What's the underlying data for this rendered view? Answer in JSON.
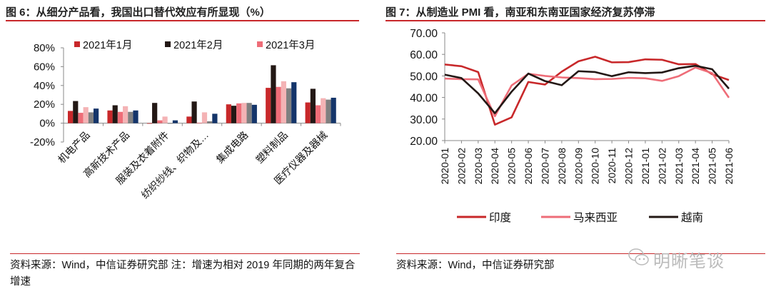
{
  "left": {
    "title": "图 6：从细分产品看，我国出口替代效应有所显现（%）",
    "source": "资料来源：Wind，中信证券研究部  注：增速为相对 2019 年同期的两年复合增速"
  },
  "right": {
    "title": "图 7：从制造业 PMI 看，南亚和东南亚国家经济复苏停滞",
    "source": "资料来源：Wind，中信证券研究部"
  },
  "watermark": "明晰笔谈",
  "chart_data": [
    {
      "type": "bar",
      "title": "从细分产品看，我国出口替代效应有所显现（%）",
      "categories": [
        "机电产品",
        "高新技术产品",
        "服装及衣着附件",
        "纺织纱线、织物及…",
        "集成电路",
        "塑料制品",
        "医疗仪器及器械"
      ],
      "ylim": [
        -20,
        80
      ],
      "yticks": [
        -20,
        0,
        20,
        40,
        60,
        80
      ],
      "ytick_labels": [
        "-20%",
        "0%",
        "20%",
        "40%",
        "60%",
        "80%"
      ],
      "legend_position": "top",
      "series": [
        {
          "name": "2021年1月",
          "color": "#c8282a",
          "in_legend": true,
          "values": [
            13,
            13.5,
            -0.5,
            7,
            20,
            37.5,
            22
          ]
        },
        {
          "name": "2021年2月",
          "color": "#231815",
          "in_legend": true,
          "values": [
            23.5,
            19,
            21.5,
            23,
            18.5,
            61.5,
            36.5
          ]
        },
        {
          "name": "2021年3月",
          "color": "#ee6d78",
          "in_legend": true,
          "values": [
            11,
            12,
            3,
            0.5,
            21,
            38.5,
            19
          ]
        },
        {
          "name": "series4",
          "color": "#f4b3b5",
          "in_legend": false,
          "values": [
            17,
            18,
            7,
            11.5,
            21.5,
            44.5,
            26.5
          ]
        },
        {
          "name": "series5",
          "color": "#808080",
          "in_legend": false,
          "values": [
            11.5,
            12,
            0,
            2,
            21.5,
            37,
            25
          ]
        },
        {
          "name": "series6",
          "color": "#14356a",
          "in_legend": false,
          "values": [
            15.5,
            13.5,
            3,
            10,
            19.5,
            43.5,
            27
          ]
        }
      ]
    },
    {
      "type": "line",
      "title": "从制造业 PMI 看，南亚和东南亚国家经济复苏停滞",
      "x": [
        "2020-01",
        "2020-02",
        "2020-03",
        "2020-04",
        "2020-05",
        "2020-06",
        "2020-07",
        "2020-08",
        "2020-09",
        "2020-10",
        "2020-11",
        "2020-12",
        "2021-01",
        "2021-02",
        "2021-03",
        "2021-04",
        "2021-05",
        "2021-06"
      ],
      "ylim": [
        20,
        70
      ],
      "yticks": [
        20,
        30,
        40,
        50,
        60,
        70
      ],
      "ytick_labels": [
        "20.00",
        "30.00",
        "40.00",
        "50.00",
        "60.00",
        "70.00"
      ],
      "legend_position": "bottom",
      "series": [
        {
          "name": "印度",
          "color": "#c8282a",
          "values": [
            55.3,
            54.5,
            51.8,
            27.4,
            30.8,
            47.2,
            46.0,
            52.0,
            56.8,
            58.9,
            56.3,
            56.4,
            57.7,
            57.5,
            55.4,
            55.5,
            50.8,
            48.1
          ]
        },
        {
          "name": "马来西亚",
          "color": "#ee6d78",
          "values": [
            48.8,
            48.5,
            48.4,
            31.3,
            45.6,
            51.0,
            50.0,
            49.3,
            49.0,
            48.5,
            48.6,
            49.1,
            48.9,
            47.7,
            49.9,
            53.9,
            51.3,
            39.9
          ]
        },
        {
          "name": "越南",
          "color": "#231815",
          "values": [
            50.6,
            49.0,
            41.9,
            32.7,
            42.7,
            51.1,
            47.6,
            45.7,
            52.2,
            51.8,
            49.9,
            51.7,
            51.3,
            51.6,
            53.6,
            54.7,
            53.1,
            44.1
          ]
        }
      ]
    }
  ]
}
